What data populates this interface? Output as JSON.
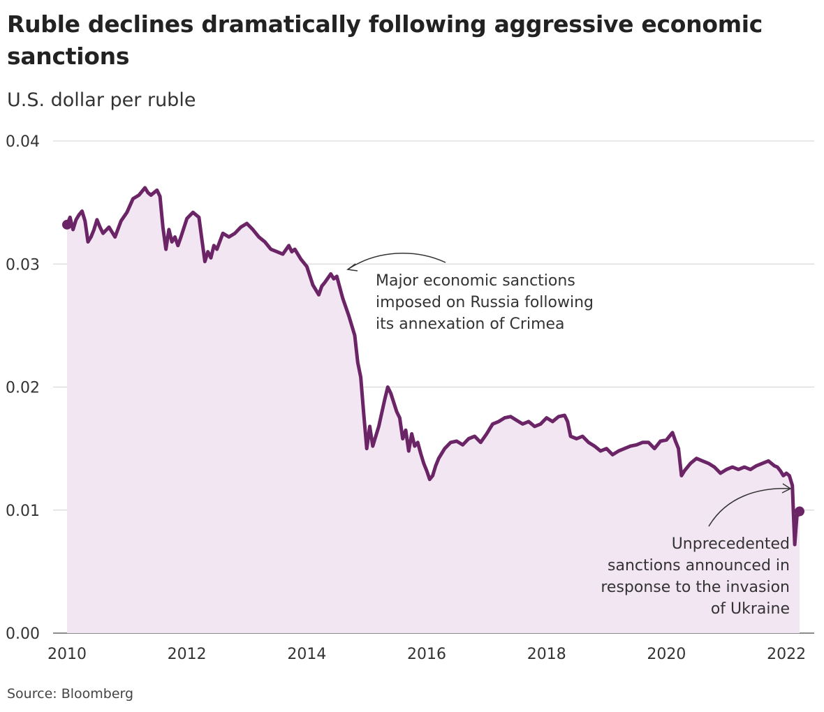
{
  "title": "Ruble declines dramatically following aggressive economic sanctions",
  "subtitle": "U.S. dollar per ruble",
  "source": "Source: Bloomberg",
  "colors": {
    "line": "#6b2466",
    "area": "#f3e6f3",
    "grid": "#d9d9d9",
    "text": "#222222"
  },
  "chart_data": {
    "type": "area",
    "title": "Ruble declines dramatically following aggressive economic sanctions",
    "ylabel": "U.S. dollar per ruble",
    "xlabel": "",
    "xlim": [
      2010.0,
      2022.3
    ],
    "ylim": [
      0,
      0.04
    ],
    "grid": true,
    "x_ticks": [
      2010,
      2012,
      2014,
      2016,
      2018,
      2020,
      2022
    ],
    "x_tick_labels": [
      "2010",
      "2012",
      "2014",
      "2016",
      "2018",
      "2020",
      "2022"
    ],
    "y_ticks": [
      0,
      0.01,
      0.02,
      0.03,
      0.04
    ],
    "y_tick_labels": [
      "0.00",
      "0.01",
      "0.02",
      "0.03",
      "0.04"
    ],
    "series": [
      {
        "name": "U.S. dollar per ruble",
        "x": [
          2010.0,
          2010.05,
          2010.1,
          2010.15,
          2010.2,
          2010.25,
          2010.3,
          2010.35,
          2010.4,
          2010.45,
          2010.5,
          2010.55,
          2010.6,
          2010.7,
          2010.8,
          2010.9,
          2011.0,
          2011.1,
          2011.2,
          2011.3,
          2011.35,
          2011.4,
          2011.5,
          2011.55,
          2011.6,
          2011.65,
          2011.7,
          2011.75,
          2011.8,
          2011.85,
          2011.9,
          2012.0,
          2012.1,
          2012.2,
          2012.25,
          2012.3,
          2012.35,
          2012.4,
          2012.45,
          2012.5,
          2012.6,
          2012.7,
          2012.8,
          2012.9,
          2013.0,
          2013.1,
          2013.2,
          2013.3,
          2013.4,
          2013.5,
          2013.6,
          2013.7,
          2013.75,
          2013.8,
          2013.9,
          2014.0,
          2014.1,
          2014.2,
          2014.25,
          2014.3,
          2014.4,
          2014.45,
          2014.5,
          2014.6,
          2014.7,
          2014.8,
          2014.85,
          2014.9,
          2014.95,
          2015.0,
          2015.05,
          2015.1,
          2015.15,
          2015.2,
          2015.3,
          2015.35,
          2015.4,
          2015.5,
          2015.55,
          2015.6,
          2015.65,
          2015.7,
          2015.75,
          2015.8,
          2015.85,
          2015.9,
          2015.95,
          2016.0,
          2016.05,
          2016.1,
          2016.15,
          2016.2,
          2016.3,
          2016.4,
          2016.5,
          2016.6,
          2016.7,
          2016.8,
          2016.9,
          2017.0,
          2017.1,
          2017.2,
          2017.3,
          2017.4,
          2017.5,
          2017.6,
          2017.7,
          2017.8,
          2017.9,
          2018.0,
          2018.1,
          2018.2,
          2018.3,
          2018.35,
          2018.4,
          2018.5,
          2018.6,
          2018.7,
          2018.8,
          2018.9,
          2019.0,
          2019.1,
          2019.2,
          2019.3,
          2019.4,
          2019.5,
          2019.6,
          2019.7,
          2019.8,
          2019.9,
          2020.0,
          2020.05,
          2020.1,
          2020.15,
          2020.2,
          2020.25,
          2020.3,
          2020.4,
          2020.5,
          2020.6,
          2020.7,
          2020.8,
          2020.9,
          2021.0,
          2021.1,
          2021.2,
          2021.3,
          2021.4,
          2021.5,
          2021.6,
          2021.7,
          2021.8,
          2021.85,
          2021.9,
          2021.95,
          2022.0,
          2022.05,
          2022.1,
          2022.12,
          2022.14,
          2022.16,
          2022.18,
          2022.2,
          2022.22
        ],
        "values": [
          0.0332,
          0.0338,
          0.0328,
          0.0336,
          0.034,
          0.0343,
          0.0335,
          0.0318,
          0.0322,
          0.0328,
          0.0336,
          0.033,
          0.0325,
          0.033,
          0.0322,
          0.0335,
          0.0342,
          0.0353,
          0.0356,
          0.0362,
          0.0358,
          0.0356,
          0.036,
          0.0355,
          0.033,
          0.0312,
          0.0328,
          0.0318,
          0.0322,
          0.0315,
          0.0322,
          0.0337,
          0.0342,
          0.0338,
          0.032,
          0.0302,
          0.031,
          0.0305,
          0.0315,
          0.0312,
          0.0325,
          0.0322,
          0.0325,
          0.033,
          0.0333,
          0.0328,
          0.0322,
          0.0318,
          0.0312,
          0.031,
          0.0308,
          0.0315,
          0.031,
          0.0312,
          0.0304,
          0.0298,
          0.0283,
          0.0275,
          0.0282,
          0.0285,
          0.0292,
          0.0288,
          0.029,
          0.0272,
          0.0258,
          0.0242,
          0.022,
          0.0208,
          0.0178,
          0.015,
          0.0168,
          0.0152,
          0.016,
          0.0168,
          0.019,
          0.02,
          0.0195,
          0.018,
          0.0175,
          0.0158,
          0.0165,
          0.0148,
          0.0162,
          0.0152,
          0.0155,
          0.0146,
          0.0138,
          0.0132,
          0.0125,
          0.0128,
          0.0136,
          0.0142,
          0.015,
          0.0155,
          0.0156,
          0.0153,
          0.0158,
          0.016,
          0.0155,
          0.0162,
          0.017,
          0.0172,
          0.0175,
          0.0176,
          0.0173,
          0.017,
          0.0172,
          0.0168,
          0.017,
          0.0175,
          0.0172,
          0.0176,
          0.0177,
          0.0172,
          0.016,
          0.0158,
          0.016,
          0.0155,
          0.0152,
          0.0148,
          0.015,
          0.0145,
          0.0148,
          0.015,
          0.0152,
          0.0153,
          0.0155,
          0.0155,
          0.015,
          0.0156,
          0.0157,
          0.016,
          0.0163,
          0.0156,
          0.015,
          0.0128,
          0.0132,
          0.0138,
          0.0142,
          0.014,
          0.0138,
          0.0135,
          0.013,
          0.0133,
          0.0135,
          0.0133,
          0.0135,
          0.0133,
          0.0136,
          0.0138,
          0.014,
          0.0136,
          0.0135,
          0.0132,
          0.0128,
          0.013,
          0.0128,
          0.012,
          0.0095,
          0.0072,
          0.0085,
          0.0098,
          0.0096,
          0.0099
        ]
      }
    ],
    "endpoint_markers": [
      {
        "x": 2010.0,
        "y": 0.0332
      },
      {
        "x": 2022.22,
        "y": 0.0099
      }
    ],
    "annotations": [
      {
        "id": "crimea",
        "lines": [
          "Major economic sanctions",
          "imposed on Russia following",
          "its annexation of Crimea"
        ],
        "x": 2014.5,
        "y": 0.0295
      },
      {
        "id": "ukraine",
        "lines": [
          "Unprecedented",
          "sanctions announced in",
          "response to the invasion",
          "of Ukraine"
        ],
        "x": 2022.1,
        "y": 0.0118
      }
    ]
  }
}
